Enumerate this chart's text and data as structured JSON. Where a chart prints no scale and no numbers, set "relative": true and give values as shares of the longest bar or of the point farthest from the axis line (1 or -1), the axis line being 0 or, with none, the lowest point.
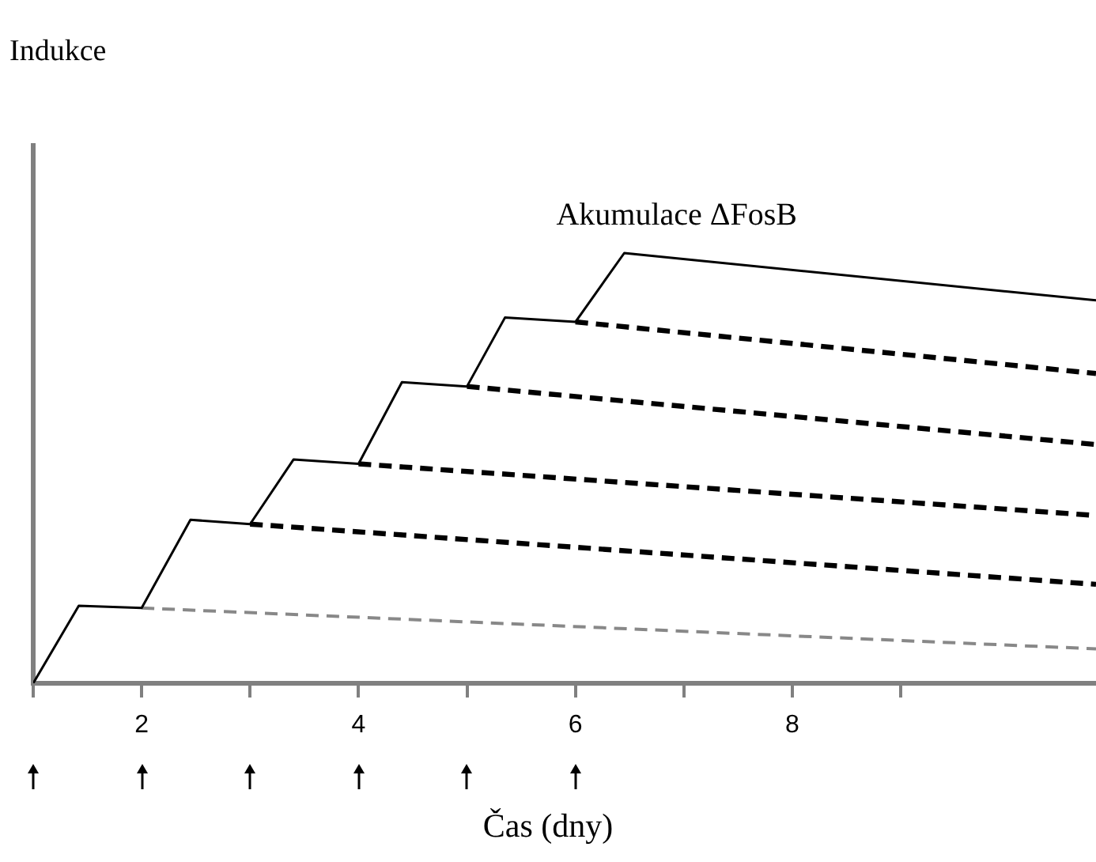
{
  "chart_data": {
    "type": "line",
    "relative": true,
    "annotations": [
      "Indukce"
    ],
    "xlabel": "Čas (dny)",
    "xlim": [
      1,
      10.8
    ],
    "xticks": [
      {
        "value": 1,
        "label": null
      },
      2,
      {
        "value": 3,
        "label": null
      },
      4,
      {
        "value": 5,
        "label": null
      },
      6,
      {
        "value": 7,
        "label": null
      },
      8,
      {
        "value": 9,
        "label": null
      }
    ],
    "legend": false,
    "grid": false,
    "marker": "none",
    "series": [
      {
        "name": "Akumulace ΔFosB",
        "color": "#000000",
        "line_style": "solid",
        "x": [
          1,
          1.42,
          2,
          2.45,
          3,
          3.4,
          4,
          4.4,
          5,
          5.35,
          6,
          6.45,
          10.8
        ],
        "values": [
          0,
          0.18,
          0.175,
          0.38,
          0.37,
          0.52,
          0.51,
          0.7,
          0.69,
          0.85,
          0.84,
          1,
          0.89
        ]
      },
      {
        "color": "#888888",
        "line_style": "dashed",
        "x": [
          2,
          10.8
        ],
        "values": [
          0.175,
          0.08
        ]
      },
      {
        "color": "#000000",
        "line_style": "dashed",
        "x": [
          3,
          10.8
        ],
        "values": [
          0.37,
          0.23
        ]
      },
      {
        "color": "#000000",
        "line_style": "dashed",
        "x": [
          4,
          10.8
        ],
        "values": [
          0.51,
          0.39
        ]
      },
      {
        "color": "#000000",
        "line_style": "dashed",
        "x": [
          5,
          10.8
        ],
        "values": [
          0.69,
          0.555
        ]
      },
      {
        "color": "#000000",
        "line_style": "dashed",
        "x": [
          6,
          10.8
        ],
        "values": [
          0.84,
          0.72
        ]
      }
    ]
  }
}
